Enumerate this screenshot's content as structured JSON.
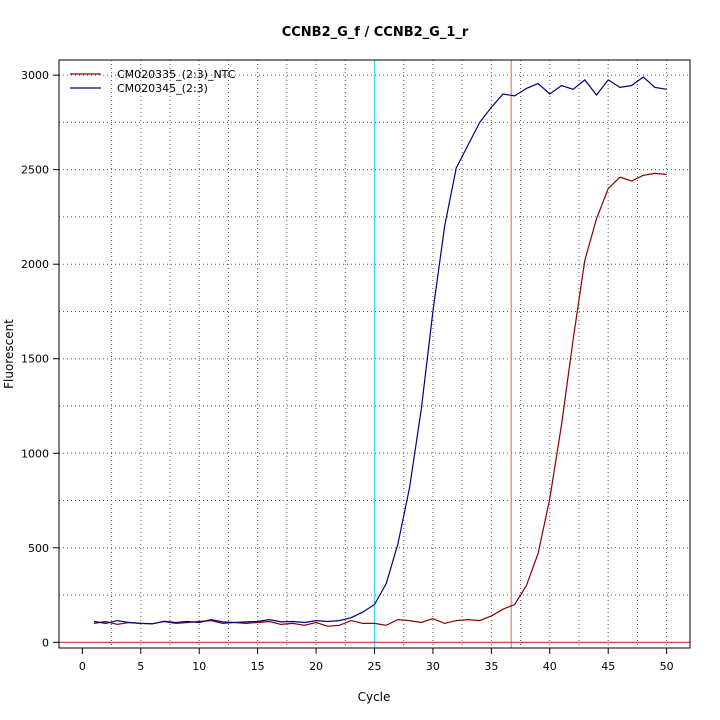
{
  "chart_data": {
    "type": "line",
    "title": "CCNB2_G_f / CCNB2_G_1_r",
    "xlabel": "Cycle",
    "ylabel": "Fluorescent",
    "xlim": [
      -2,
      52
    ],
    "ylim": [
      -30,
      3080
    ],
    "x_ticks": [
      0,
      5,
      10,
      15,
      20,
      25,
      30,
      35,
      40,
      45,
      50
    ],
    "y_ticks": [
      0,
      500,
      1000,
      1500,
      2000,
      2500,
      3000
    ],
    "grid": "dotted",
    "legend_position": "top-left",
    "reference_lines": [
      {
        "orientation": "vertical",
        "x": 25,
        "color": "#33d6f0"
      },
      {
        "orientation": "vertical",
        "x": 36.7,
        "color": "#e07f78"
      },
      {
        "orientation": "horizontal",
        "y": 0,
        "color": "#c0392b"
      }
    ],
    "x": [
      1,
      2,
      3,
      4,
      5,
      6,
      7,
      8,
      9,
      10,
      11,
      12,
      13,
      14,
      15,
      16,
      17,
      18,
      19,
      20,
      21,
      22,
      23,
      24,
      25,
      26,
      27,
      28,
      29,
      30,
      31,
      32,
      33,
      34,
      35,
      36,
      37,
      38,
      39,
      40,
      41,
      42,
      43,
      44,
      45,
      46,
      47,
      48,
      49,
      50
    ],
    "series": [
      {
        "name": "CM020335_(2:3)_NTC",
        "color": "#8b0000",
        "values": [
          100,
          110,
          95,
          105,
          100,
          98,
          110,
          100,
          105,
          110,
          115,
          100,
          105,
          100,
          105,
          110,
          95,
          100,
          90,
          105,
          85,
          90,
          115,
          100,
          100,
          90,
          120,
          115,
          105,
          125,
          100,
          115,
          120,
          115,
          140,
          175,
          200,
          300,
          470,
          760,
          1150,
          1600,
          2020,
          2240,
          2400,
          2460,
          2440,
          2470,
          2480,
          2475
        ]
      },
      {
        "name": "CM020345_(2:3)",
        "color": "#000080",
        "values": [
          110,
          100,
          115,
          105,
          100,
          98,
          112,
          105,
          110,
          105,
          120,
          108,
          105,
          108,
          110,
          120,
          108,
          110,
          105,
          115,
          110,
          115,
          130,
          160,
          200,
          310,
          520,
          820,
          1230,
          1750,
          2200,
          2510,
          2630,
          2750,
          2830,
          2900,
          2890,
          2930,
          2955,
          2900,
          2945,
          2925,
          2975,
          2895,
          2975,
          2935,
          2945,
          2990,
          2935,
          2925
        ]
      }
    ]
  }
}
